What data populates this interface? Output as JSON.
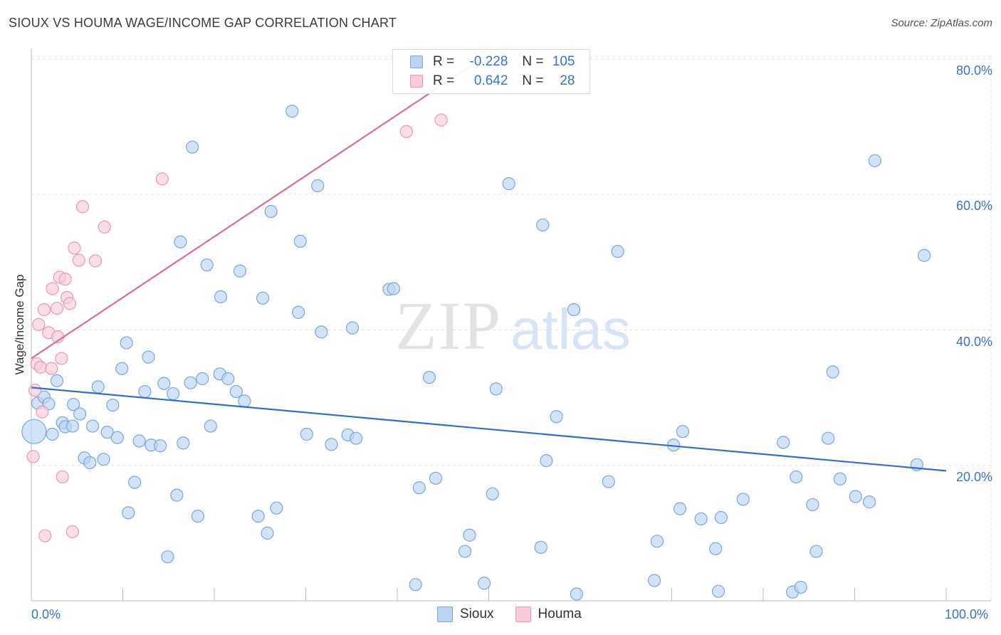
{
  "title": "SIOUX VS HOUMA WAGE/INCOME GAP CORRELATION CHART",
  "source": "Source: ZipAtlas.com",
  "watermark": {
    "zip": "ZIP",
    "atlas": "atlas"
  },
  "legend": {
    "rows": [
      {
        "r_label": "R =",
        "r_value": "-0.228",
        "n_label": "N =",
        "n_value": "105",
        "color": "#bcd4f2",
        "border": "#7aa6dd"
      },
      {
        "r_label": "R =",
        "r_value": "0.642",
        "n_label": "N =",
        "n_value": "28",
        "color": "#f9cbd9",
        "border": "#e89ab4"
      }
    ]
  },
  "bottom_legend": [
    {
      "label": "Sioux",
      "color": "#bcd4f2",
      "border": "#7aa6dd"
    },
    {
      "label": "Houma",
      "color": "#f9cbd9",
      "border": "#e89ab4"
    }
  ],
  "chart_data": {
    "type": "scatter",
    "title": "SIOUX VS HOUMA WAGE/INCOME GAP CORRELATION CHART",
    "xlabel": "",
    "ylabel": "Wage/Income Gap",
    "xlim": [
      0,
      100
    ],
    "ylim": [
      0,
      80
    ],
    "x_tick_labels": [
      "0.0%",
      "100.0%"
    ],
    "y_ticks": [
      20,
      40,
      60,
      80
    ],
    "y_tick_labels": [
      "20.0%",
      "40.0%",
      "60.0%",
      "80.0%"
    ],
    "grid": true,
    "legend_position": "top-center",
    "series": [
      {
        "name": "Sioux",
        "color": "#7aa6dd",
        "fill": "#bcd4f2",
        "line_color": "#2f6fcc",
        "trend": {
          "x": [
            0,
            100
          ],
          "y": [
            31.5,
            19.2
          ]
        },
        "points": [
          [
            0.3,
            25.0,
            1
          ],
          [
            0.7,
            29.2,
            0
          ],
          [
            1.4,
            30.1,
            0
          ],
          [
            1.9,
            29.1,
            0
          ],
          [
            2.3,
            24.6,
            0
          ],
          [
            2.8,
            32.5,
            0
          ],
          [
            3.4,
            26.3,
            0
          ],
          [
            3.7,
            25.7,
            0
          ],
          [
            4.5,
            25.8,
            0
          ],
          [
            4.6,
            29.0,
            0
          ],
          [
            5.3,
            27.6,
            0
          ],
          [
            5.8,
            21.1,
            0
          ],
          [
            6.4,
            20.4,
            0
          ],
          [
            6.7,
            25.8,
            0
          ],
          [
            7.3,
            31.6,
            0
          ],
          [
            7.9,
            20.9,
            0
          ],
          [
            8.3,
            24.9,
            0
          ],
          [
            8.9,
            28.9,
            0
          ],
          [
            9.4,
            24.1,
            0
          ],
          [
            9.9,
            34.3,
            0
          ],
          [
            10.4,
            38.1,
            0
          ],
          [
            10.6,
            13.0,
            0
          ],
          [
            11.3,
            17.5,
            0
          ],
          [
            11.8,
            23.6,
            0
          ],
          [
            12.4,
            30.9,
            0
          ],
          [
            12.8,
            36.0,
            0
          ],
          [
            13.1,
            23.0,
            0
          ],
          [
            14.1,
            22.9,
            0
          ],
          [
            14.5,
            32.1,
            0
          ],
          [
            14.9,
            6.5,
            0
          ],
          [
            15.5,
            30.6,
            0
          ],
          [
            15.9,
            15.6,
            0
          ],
          [
            16.3,
            53.0,
            0
          ],
          [
            16.6,
            23.3,
            0
          ],
          [
            17.4,
            32.2,
            0
          ],
          [
            17.6,
            67.0,
            0
          ],
          [
            18.2,
            12.5,
            0
          ],
          [
            18.7,
            32.8,
            0
          ],
          [
            19.2,
            49.6,
            0
          ],
          [
            19.6,
            25.8,
            0
          ],
          [
            20.6,
            33.5,
            0
          ],
          [
            20.7,
            44.9,
            0
          ],
          [
            21.5,
            32.8,
            0
          ],
          [
            22.4,
            30.9,
            0
          ],
          [
            22.8,
            48.7,
            0
          ],
          [
            23.3,
            29.5,
            0
          ],
          [
            24.8,
            12.5,
            0
          ],
          [
            25.3,
            44.7,
            0
          ],
          [
            25.8,
            10.0,
            0
          ],
          [
            26.2,
            57.5,
            0
          ],
          [
            26.8,
            13.7,
            0
          ],
          [
            28.5,
            72.3,
            0
          ],
          [
            29.2,
            42.6,
            0
          ],
          [
            29.4,
            53.1,
            0
          ],
          [
            30.1,
            24.6,
            0
          ],
          [
            31.3,
            61.3,
            0
          ],
          [
            31.7,
            39.7,
            0
          ],
          [
            32.8,
            23.1,
            0
          ],
          [
            34.6,
            24.5,
            0
          ],
          [
            35.1,
            40.3,
            0
          ],
          [
            35.5,
            24.0,
            0
          ],
          [
            39.1,
            46.0,
            0
          ],
          [
            39.6,
            46.1,
            0
          ],
          [
            42.0,
            2.4,
            0
          ],
          [
            42.4,
            16.7,
            0
          ],
          [
            43.5,
            33.0,
            0
          ],
          [
            44.2,
            18.1,
            0
          ],
          [
            47.4,
            7.3,
            0
          ],
          [
            47.9,
            9.7,
            0
          ],
          [
            49.5,
            2.6,
            0
          ],
          [
            50.4,
            15.8,
            0
          ],
          [
            50.8,
            31.3,
            0
          ],
          [
            52.2,
            61.6,
            0
          ],
          [
            55.7,
            7.9,
            0
          ],
          [
            55.9,
            55.5,
            0
          ],
          [
            56.3,
            20.7,
            0
          ],
          [
            57.4,
            27.2,
            0
          ],
          [
            59.3,
            43.0,
            0
          ],
          [
            59.6,
            1.0,
            0
          ],
          [
            63.1,
            17.6,
            0
          ],
          [
            64.1,
            51.6,
            0
          ],
          [
            68.1,
            3.0,
            0
          ],
          [
            68.4,
            8.8,
            0
          ],
          [
            70.2,
            23.0,
            0
          ],
          [
            70.9,
            13.6,
            0
          ],
          [
            71.2,
            25.0,
            0
          ],
          [
            73.2,
            12.1,
            0
          ],
          [
            74.8,
            7.7,
            0
          ],
          [
            75.1,
            1.4,
            0
          ],
          [
            75.4,
            12.3,
            0
          ],
          [
            77.8,
            15.0,
            0
          ],
          [
            82.2,
            23.4,
            0
          ],
          [
            83.2,
            1.3,
            0
          ],
          [
            83.6,
            18.3,
            0
          ],
          [
            84.1,
            2.0,
            0
          ],
          [
            85.4,
            14.2,
            0
          ],
          [
            85.8,
            7.3,
            0
          ],
          [
            87.1,
            24.0,
            0
          ],
          [
            87.6,
            33.8,
            0
          ],
          [
            88.4,
            18.0,
            0
          ],
          [
            90.1,
            15.4,
            0
          ],
          [
            91.6,
            14.6,
            0
          ],
          [
            92.2,
            65.0,
            0
          ],
          [
            96.8,
            20.1,
            0
          ],
          [
            97.6,
            51.0,
            0
          ]
        ]
      },
      {
        "name": "Houma",
        "color": "#e89ab4",
        "fill": "#f9cbd9",
        "line_color": "#e06a94",
        "trend": {
          "x": [
            0,
            48.6
          ],
          "y": [
            35.8,
            79.5
          ]
        },
        "points": [
          [
            0.2,
            21.3,
            0
          ],
          [
            0.4,
            31.1,
            0
          ],
          [
            0.6,
            35.0,
            0
          ],
          [
            0.8,
            40.8,
            0
          ],
          [
            1.0,
            34.5,
            0
          ],
          [
            1.2,
            27.9,
            0
          ],
          [
            1.4,
            43.0,
            0
          ],
          [
            1.5,
            9.6,
            0
          ],
          [
            1.9,
            39.6,
            0
          ],
          [
            2.2,
            34.3,
            0
          ],
          [
            2.3,
            46.1,
            0
          ],
          [
            2.8,
            43.2,
            0
          ],
          [
            2.9,
            39.0,
            0
          ],
          [
            3.1,
            47.8,
            0
          ],
          [
            3.3,
            35.8,
            0
          ],
          [
            3.4,
            18.3,
            0
          ],
          [
            3.7,
            47.5,
            0
          ],
          [
            3.9,
            44.8,
            0
          ],
          [
            4.2,
            43.9,
            0
          ],
          [
            4.5,
            10.2,
            0
          ],
          [
            4.7,
            52.1,
            0
          ],
          [
            5.2,
            50.3,
            0
          ],
          [
            5.6,
            58.2,
            0
          ],
          [
            7.0,
            50.2,
            0
          ],
          [
            8.0,
            55.2,
            0
          ],
          [
            14.3,
            62.3,
            0
          ],
          [
            41.0,
            69.3,
            0
          ],
          [
            44.8,
            71.0,
            0
          ]
        ]
      }
    ]
  }
}
